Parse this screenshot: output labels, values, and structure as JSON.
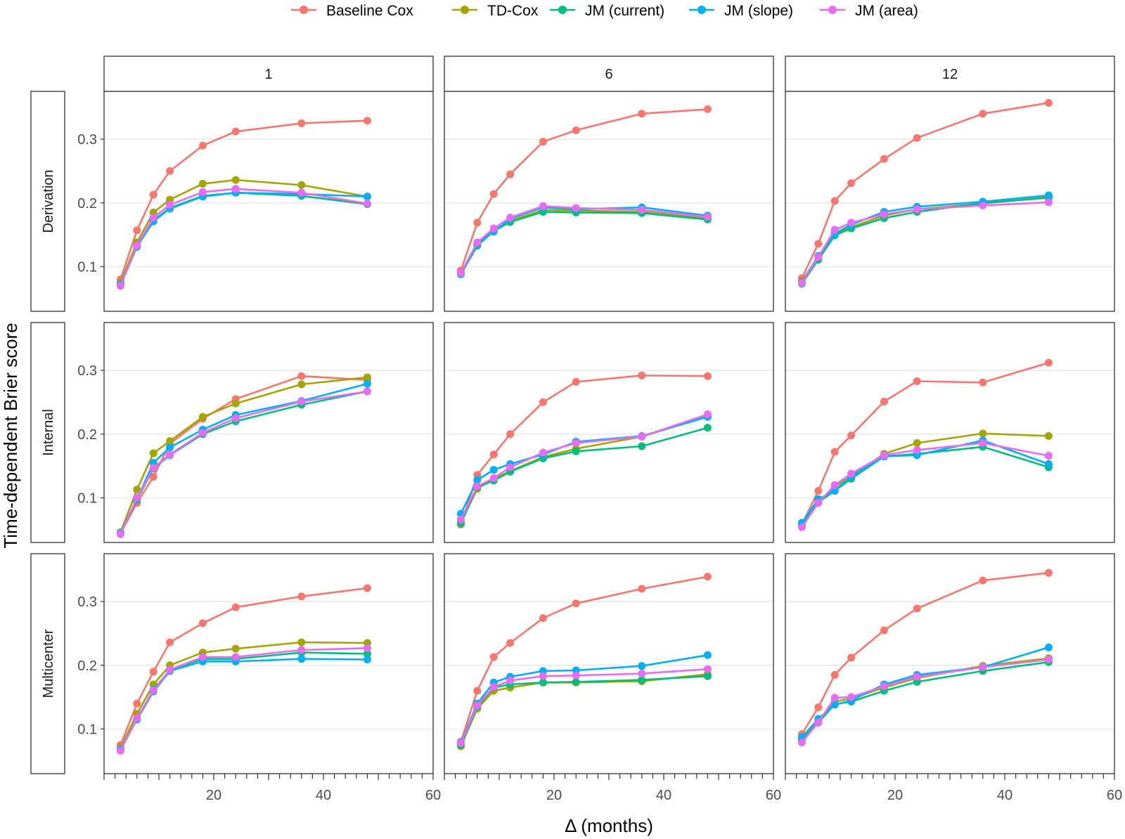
{
  "chart_data": {
    "type": "line",
    "ylabel": "Time-dependent Brier score",
    "xlabel": "Δ (months)",
    "xlim": [
      0,
      60
    ],
    "ylim": [
      0.03,
      0.375
    ],
    "x_ticks": [
      20,
      40,
      60
    ],
    "y_ticks": [
      0.1,
      0.2,
      0.3
    ],
    "y_tick_labels": [
      "0.1",
      "0.2",
      "0.3"
    ],
    "x_tick_labels": [
      "20",
      "40",
      "60"
    ],
    "grid": true,
    "legend_position": "top",
    "column_facets": [
      "1",
      "6",
      "12"
    ],
    "row_facets": [
      "Derivation",
      "Internal",
      "Multicenter"
    ],
    "series_meta": [
      {
        "name": "Baseline Cox",
        "color": "#F8766D"
      },
      {
        "name": "TD-Cox",
        "color": "#A3A500"
      },
      {
        "name": "JM (current)",
        "color": "#00BF7D"
      },
      {
        "name": "JM (slope)",
        "color": "#00B0F6"
      },
      {
        "name": "JM (area)",
        "color": "#E76BF3"
      }
    ],
    "panels": [
      {
        "row": "Derivation",
        "col": "1",
        "x": [
          3,
          6,
          9,
          12,
          18,
          24,
          36,
          48
        ],
        "series": [
          {
            "name": "Baseline Cox",
            "values": [
              0.08,
              0.157,
              0.213,
              0.25,
              0.29,
              0.312,
              0.325,
              0.329
            ]
          },
          {
            "name": "TD-Cox",
            "values": [
              0.075,
              0.138,
              0.185,
              0.205,
              0.23,
              0.236,
              0.228,
              0.21
            ]
          },
          {
            "name": "JM (current)",
            "values": [
              0.071,
              0.131,
              0.173,
              0.192,
              0.211,
              0.216,
              0.211,
              0.198
            ]
          },
          {
            "name": "JM (slope)",
            "values": [
              0.072,
              0.132,
              0.171,
              0.191,
              0.21,
              0.216,
              0.214,
              0.21
            ]
          },
          {
            "name": "JM (area)",
            "values": [
              0.07,
              0.133,
              0.177,
              0.197,
              0.217,
              0.222,
              0.216,
              0.199
            ]
          }
        ]
      },
      {
        "row": "Derivation",
        "col": "6",
        "x": [
          3,
          6,
          9,
          12,
          18,
          24,
          36,
          48
        ],
        "series": [
          {
            "name": "Baseline Cox",
            "values": [
              0.094,
              0.169,
              0.214,
              0.245,
              0.296,
              0.314,
              0.34,
              0.347
            ]
          },
          {
            "name": "TD-Cox",
            "values": [
              0.09,
              0.135,
              0.157,
              0.172,
              0.189,
              0.188,
              0.186,
              0.176
            ]
          },
          {
            "name": "JM (current)",
            "values": [
              0.088,
              0.133,
              0.156,
              0.17,
              0.186,
              0.185,
              0.184,
              0.174
            ]
          },
          {
            "name": "JM (slope)",
            "values": [
              0.089,
              0.136,
              0.155,
              0.175,
              0.193,
              0.19,
              0.193,
              0.18
            ]
          },
          {
            "name": "JM (area)",
            "values": [
              0.09,
              0.138,
              0.16,
              0.177,
              0.195,
              0.192,
              0.189,
              0.178
            ]
          }
        ]
      },
      {
        "row": "Derivation",
        "col": "12",
        "x": [
          3,
          6,
          9,
          12,
          18,
          24,
          36,
          48
        ],
        "series": [
          {
            "name": "Baseline Cox",
            "values": [
              0.082,
              0.136,
              0.203,
              0.231,
              0.269,
              0.302,
              0.34,
              0.357
            ]
          },
          {
            "name": "TD-Cox",
            "values": [
              0.077,
              0.116,
              0.152,
              0.162,
              0.18,
              0.19,
              0.199,
              0.209
            ]
          },
          {
            "name": "JM (current)",
            "values": [
              0.073,
              0.111,
              0.149,
              0.16,
              0.176,
              0.186,
              0.2,
              0.208
            ]
          },
          {
            "name": "JM (slope)",
            "values": [
              0.075,
              0.117,
              0.152,
              0.166,
              0.186,
              0.194,
              0.202,
              0.212
            ]
          },
          {
            "name": "JM (area)",
            "values": [
              0.074,
              0.115,
              0.158,
              0.169,
              0.182,
              0.19,
              0.196,
              0.201
            ]
          }
        ]
      },
      {
        "row": "Internal",
        "col": "1",
        "x": [
          3,
          6,
          9,
          12,
          18,
          24,
          36,
          48
        ],
        "series": [
          {
            "name": "Baseline Cox",
            "values": [
              0.044,
              0.092,
              0.133,
              0.185,
              0.224,
              0.255,
              0.291,
              0.285
            ]
          },
          {
            "name": "TD-Cox",
            "values": [
              0.046,
              0.113,
              0.17,
              0.189,
              0.227,
              0.248,
              0.278,
              0.289
            ]
          },
          {
            "name": "JM (current)",
            "values": [
              0.044,
              0.097,
              0.146,
              0.167,
              0.2,
              0.22,
              0.246,
              0.267
            ]
          },
          {
            "name": "JM (slope)",
            "values": [
              0.045,
              0.098,
              0.155,
              0.179,
              0.207,
              0.23,
              0.252,
              0.279
            ]
          },
          {
            "name": "JM (area)",
            "values": [
              0.043,
              0.1,
              0.147,
              0.168,
              0.202,
              0.225,
              0.251,
              0.267
            ]
          }
        ]
      },
      {
        "row": "Internal",
        "col": "6",
        "x": [
          3,
          6,
          9,
          12,
          18,
          24,
          36,
          48
        ],
        "series": [
          {
            "name": "Baseline Cox",
            "values": [
              0.058,
              0.136,
              0.168,
              0.2,
              0.25,
              0.282,
              0.292,
              0.291
            ]
          },
          {
            "name": "TD-Cox",
            "values": [
              0.062,
              0.114,
              0.13,
              0.142,
              0.164,
              0.177,
              0.196,
              0.228
            ]
          },
          {
            "name": "JM (current)",
            "values": [
              0.06,
              0.117,
              0.127,
              0.141,
              0.162,
              0.173,
              0.181,
              0.21
            ]
          },
          {
            "name": "JM (slope)",
            "values": [
              0.075,
              0.128,
              0.144,
              0.153,
              0.168,
              0.188,
              0.197,
              0.227
            ]
          },
          {
            "name": "JM (area)",
            "values": [
              0.066,
              0.118,
              0.131,
              0.148,
              0.171,
              0.186,
              0.196,
              0.231
            ]
          }
        ]
      },
      {
        "row": "Internal",
        "col": "12",
        "x": [
          3,
          6,
          9,
          12,
          18,
          24,
          36,
          48
        ],
        "series": [
          {
            "name": "Baseline Cox",
            "values": [
              0.058,
              0.111,
              0.172,
              0.198,
              0.251,
              0.283,
              0.281,
              0.312
            ]
          },
          {
            "name": "TD-Cox",
            "values": [
              0.057,
              0.093,
              0.117,
              0.134,
              0.169,
              0.186,
              0.201,
              0.197
            ]
          },
          {
            "name": "JM (current)",
            "values": [
              0.057,
              0.093,
              0.111,
              0.13,
              0.165,
              0.169,
              0.18,
              0.148
            ]
          },
          {
            "name": "JM (slope)",
            "values": [
              0.061,
              0.098,
              0.111,
              0.134,
              0.165,
              0.167,
              0.19,
              0.153
            ]
          },
          {
            "name": "JM (area)",
            "values": [
              0.054,
              0.092,
              0.12,
              0.138,
              0.167,
              0.175,
              0.186,
              0.166
            ]
          }
        ]
      },
      {
        "row": "Multicenter",
        "col": "1",
        "x": [
          3,
          6,
          9,
          12,
          18,
          24,
          36,
          48
        ],
        "series": [
          {
            "name": "Baseline Cox",
            "values": [
              0.075,
              0.14,
              0.19,
              0.236,
              0.266,
              0.291,
              0.308,
              0.321
            ]
          },
          {
            "name": "TD-Cox",
            "values": [
              0.07,
              0.124,
              0.17,
              0.2,
              0.22,
              0.226,
              0.236,
              0.235
            ]
          },
          {
            "name": "JM (current)",
            "values": [
              0.067,
              0.116,
              0.162,
              0.192,
              0.21,
              0.21,
              0.22,
              0.218
            ]
          },
          {
            "name": "JM (slope)",
            "values": [
              0.068,
              0.115,
              0.159,
              0.191,
              0.206,
              0.206,
              0.21,
              0.209
            ]
          },
          {
            "name": "JM (area)",
            "values": [
              0.066,
              0.117,
              0.161,
              0.193,
              0.213,
              0.213,
              0.224,
              0.227
            ]
          }
        ]
      },
      {
        "row": "Multicenter",
        "col": "6",
        "x": [
          3,
          6,
          9,
          12,
          18,
          24,
          36,
          48
        ],
        "series": [
          {
            "name": "Baseline Cox",
            "values": [
              0.08,
              0.16,
              0.213,
              0.235,
              0.274,
              0.297,
              0.32,
              0.339
            ]
          },
          {
            "name": "TD-Cox",
            "values": [
              0.073,
              0.132,
              0.16,
              0.165,
              0.173,
              0.173,
              0.175,
              0.186
            ]
          },
          {
            "name": "JM (current)",
            "values": [
              0.075,
              0.135,
              0.165,
              0.17,
              0.173,
              0.174,
              0.177,
              0.183
            ]
          },
          {
            "name": "JM (slope)",
            "values": [
              0.079,
              0.14,
              0.173,
              0.182,
              0.191,
              0.192,
              0.199,
              0.216
            ]
          },
          {
            "name": "JM (area)",
            "values": [
              0.078,
              0.137,
              0.166,
              0.176,
              0.183,
              0.184,
              0.187,
              0.194
            ]
          }
        ]
      },
      {
        "row": "Multicenter",
        "col": "12",
        "x": [
          3,
          6,
          9,
          12,
          18,
          24,
          36,
          48
        ],
        "series": [
          {
            "name": "Baseline Cox",
            "values": [
              0.092,
              0.134,
              0.185,
              0.212,
              0.255,
              0.289,
              0.333,
              0.345
            ]
          },
          {
            "name": "TD-Cox",
            "values": [
              0.085,
              0.112,
              0.143,
              0.148,
              0.165,
              0.18,
              0.199,
              0.211
            ]
          },
          {
            "name": "JM (current)",
            "values": [
              0.083,
              0.11,
              0.139,
              0.143,
              0.16,
              0.174,
              0.191,
              0.205
            ]
          },
          {
            "name": "JM (slope)",
            "values": [
              0.087,
              0.116,
              0.138,
              0.145,
              0.17,
              0.185,
              0.197,
              0.228
            ]
          },
          {
            "name": "JM (area)",
            "values": [
              0.079,
              0.11,
              0.149,
              0.15,
              0.167,
              0.182,
              0.197,
              0.209
            ]
          }
        ]
      }
    ]
  }
}
